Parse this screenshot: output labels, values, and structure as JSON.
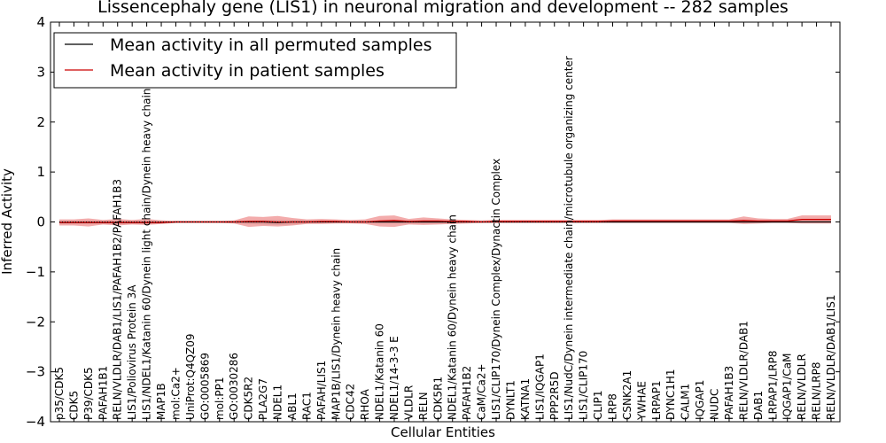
{
  "chart_data": {
    "type": "line",
    "title": "Lissencephaly gene (LIS1) in neuronal migration and development -- 282 samples",
    "xlabel": "Cellular Entities",
    "ylabel": "Inferred Activity",
    "ylim": [
      -4,
      4
    ],
    "yticks": [
      -4,
      -3,
      -2,
      -1,
      0,
      1,
      2,
      3,
      4
    ],
    "ytick_labels": [
      "−4",
      "−3",
      "−2",
      "−1",
      "0",
      "1",
      "2",
      "3",
      "4"
    ],
    "grid": false,
    "legend_position": "top-left",
    "categories": [
      "p35/CDK5",
      "CDK5",
      "P39/CDK5",
      "PAFAH1B1",
      "RELN/VLDLR/DAB1/LIS1/PAFAH1B2/PAFAH1B3",
      "LIS1/Poliovirus Protein 3A",
      "LIS1/NDEL1/Katanin 60/Dynein light chain/Dynein heavy chain",
      "MAP1B",
      "mol:Ca2+",
      "UniProt:Q4QZ09",
      "GO:0005869",
      "mol:PP1",
      "GO:0030286",
      "CDK5R2",
      "PLA2G7",
      "NDEL1",
      "ABL1",
      "RAC1",
      "PAFAH/LIS1",
      "MAP1B/LIS1/Dynein heavy chain",
      "CDC42",
      "RHOA",
      "NDEL1/Katanin 60",
      "NDEL1/14-3-3 E",
      "VLDLR",
      "RELN",
      "CDK5R1",
      "NDEL1/Katanin 60/Dynein heavy chain",
      "PAFAH1B2",
      "CaM/Ca2+",
      "LIS1/CLIP170/Dynein Complex/Dynactin Complex",
      "DYNLT1",
      "KATNA1",
      "LIS1/IQGAP1",
      "PPP2R5D",
      "LIS1/NudC/Dynein intermediate chain/microtubule organizing center",
      "LIS1/CLIP170",
      "CLIP1",
      "LRP8",
      "CSNK2A1",
      "YWHAE",
      "LRPAP1",
      "DYNC1H1",
      "CALM1",
      "IQGAP1",
      "NUDC",
      "PAFAH1B3",
      "RELN/VLDLR/DAB1",
      "DAB1",
      "LRPAP1/LRP8",
      "IQGAP1/CaM",
      "RELN/VLDLR",
      "RELN/LRP8",
      "RELN/VLDLR/DAB1/LIS1"
    ],
    "series": [
      {
        "name": "Mean activity in all permuted samples",
        "color": "#000000",
        "values": [
          -0.01,
          -0.01,
          -0.01,
          -0.01,
          -0.01,
          -0.01,
          -0.01,
          -0.01,
          0.0,
          0.0,
          0.0,
          0.0,
          0.0,
          0.0,
          0.0,
          -0.01,
          0.0,
          0.0,
          0.0,
          0.0,
          0.0,
          0.0,
          0.0,
          0.0,
          0.0,
          0.0,
          0.0,
          0.0,
          0.0,
          0.0,
          0.0,
          0.0,
          0.0,
          0.0,
          0.0,
          0.0,
          0.0,
          0.0,
          0.0,
          0.0,
          0.0,
          0.0,
          0.0,
          0.0,
          0.0,
          0.0,
          0.0,
          0.0,
          0.0,
          0.0,
          0.0,
          0.0,
          0.0,
          0.0
        ],
        "band_lower": [
          -0.04,
          -0.04,
          -0.04,
          -0.04,
          -0.04,
          -0.04,
          -0.04,
          -0.04,
          -0.02,
          -0.02,
          -0.02,
          -0.02,
          -0.02,
          -0.04,
          -0.05,
          -0.06,
          -0.05,
          -0.03,
          -0.02,
          -0.02,
          -0.02,
          -0.02,
          -0.03,
          -0.03,
          -0.03,
          -0.03,
          -0.03,
          -0.03,
          -0.02,
          -0.02,
          -0.02,
          -0.02,
          -0.02,
          -0.02,
          -0.02,
          -0.02,
          -0.02,
          -0.02,
          -0.02,
          -0.02,
          -0.02,
          -0.02,
          -0.02,
          -0.02,
          -0.02,
          -0.02,
          -0.02,
          -0.02,
          -0.02,
          -0.02,
          -0.02,
          -0.02,
          -0.02,
          -0.02
        ],
        "band_upper": [
          0.03,
          0.03,
          0.03,
          0.03,
          0.03,
          0.03,
          0.03,
          0.03,
          0.02,
          0.02,
          0.02,
          0.02,
          0.02,
          0.03,
          0.04,
          0.04,
          0.04,
          0.03,
          0.02,
          0.02,
          0.02,
          0.02,
          0.03,
          0.03,
          0.03,
          0.03,
          0.03,
          0.03,
          0.02,
          0.02,
          0.02,
          0.02,
          0.02,
          0.02,
          0.02,
          0.02,
          0.02,
          0.02,
          0.02,
          0.02,
          0.02,
          0.02,
          0.02,
          0.02,
          0.02,
          0.02,
          0.02,
          0.02,
          0.02,
          0.02,
          0.02,
          0.02,
          0.02,
          0.02
        ]
      },
      {
        "name": "Mean activity in patient samples",
        "color": "#cc0000",
        "values": [
          -0.01,
          -0.01,
          -0.01,
          -0.01,
          -0.01,
          -0.01,
          -0.01,
          -0.01,
          0.0,
          0.0,
          0.0,
          0.0,
          0.0,
          0.01,
          0.01,
          0.0,
          0.0,
          0.0,
          0.01,
          0.01,
          0.0,
          0.0,
          0.02,
          0.03,
          0.01,
          0.02,
          0.02,
          0.01,
          0.01,
          0.0,
          0.01,
          0.01,
          0.01,
          0.01,
          0.01,
          0.01,
          0.01,
          0.01,
          0.02,
          0.02,
          0.02,
          0.02,
          0.02,
          0.02,
          0.02,
          0.02,
          0.02,
          0.03,
          0.02,
          0.02,
          0.02,
          0.05,
          0.05,
          0.05
        ],
        "band_lower": [
          -0.07,
          -0.07,
          -0.09,
          -0.05,
          -0.07,
          -0.05,
          -0.06,
          -0.04,
          -0.02,
          -0.02,
          -0.02,
          -0.02,
          -0.03,
          -0.1,
          -0.08,
          -0.09,
          -0.07,
          -0.04,
          -0.04,
          -0.03,
          -0.03,
          -0.04,
          -0.09,
          -0.1,
          -0.05,
          -0.06,
          -0.05,
          -0.04,
          -0.03,
          -0.02,
          -0.02,
          -0.02,
          -0.02,
          -0.02,
          -0.02,
          -0.02,
          -0.02,
          -0.02,
          -0.02,
          -0.02,
          -0.02,
          -0.02,
          -0.02,
          -0.02,
          -0.02,
          -0.02,
          -0.02,
          -0.04,
          -0.03,
          -0.02,
          -0.02,
          -0.03,
          -0.03,
          -0.03
        ],
        "band_upper": [
          0.05,
          0.05,
          0.07,
          0.04,
          0.06,
          0.04,
          0.06,
          0.03,
          0.02,
          0.02,
          0.02,
          0.02,
          0.03,
          0.11,
          0.1,
          0.12,
          0.08,
          0.05,
          0.06,
          0.05,
          0.04,
          0.05,
          0.12,
          0.13,
          0.06,
          0.09,
          0.07,
          0.05,
          0.04,
          0.03,
          0.04,
          0.04,
          0.04,
          0.04,
          0.04,
          0.04,
          0.04,
          0.04,
          0.05,
          0.05,
          0.05,
          0.05,
          0.05,
          0.05,
          0.05,
          0.05,
          0.05,
          0.11,
          0.07,
          0.06,
          0.06,
          0.13,
          0.13,
          0.13
        ]
      }
    ]
  }
}
